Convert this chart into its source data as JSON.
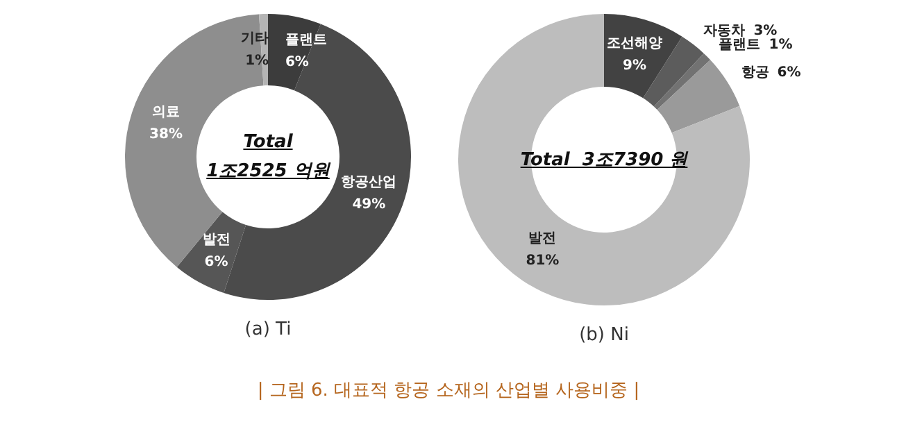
{
  "chart_data": [
    {
      "type": "donut",
      "title": "| 그림 6. 대표적 항공 소재의 산업별 사용비중 |",
      "subtitle": "(a) Ti",
      "categories": [
        "플랜트",
        "항공산업",
        "발전",
        "의료",
        "기타"
      ],
      "values": [
        6,
        49,
        6,
        38,
        1
      ],
      "colors": [
        "#3c3c3c",
        "#4b4b4b",
        "#565656",
        "#8e8e8e",
        "#b4b4b4"
      ],
      "value_labels": [
        "6%",
        "49%",
        "6%",
        "38%",
        "1%"
      ],
      "legend": false,
      "annotations": [
        "Total",
        "1조2525 억원"
      ]
    },
    {
      "type": "donut",
      "subtitle": "(b) Ni",
      "categories": [
        "조선해양",
        "자동차",
        "플랜트",
        "항공",
        "발전"
      ],
      "values": [
        9,
        3,
        1,
        6,
        81
      ],
      "colors": [
        "#424242",
        "#5c5c5c",
        "#727272",
        "#9a9a9a",
        "#bdbdbd"
      ],
      "value_labels": [
        "9%",
        "3%",
        "1%",
        "6%",
        "81%"
      ],
      "legend": false,
      "annotations": [
        "Total  3조7390 원"
      ]
    }
  ]
}
